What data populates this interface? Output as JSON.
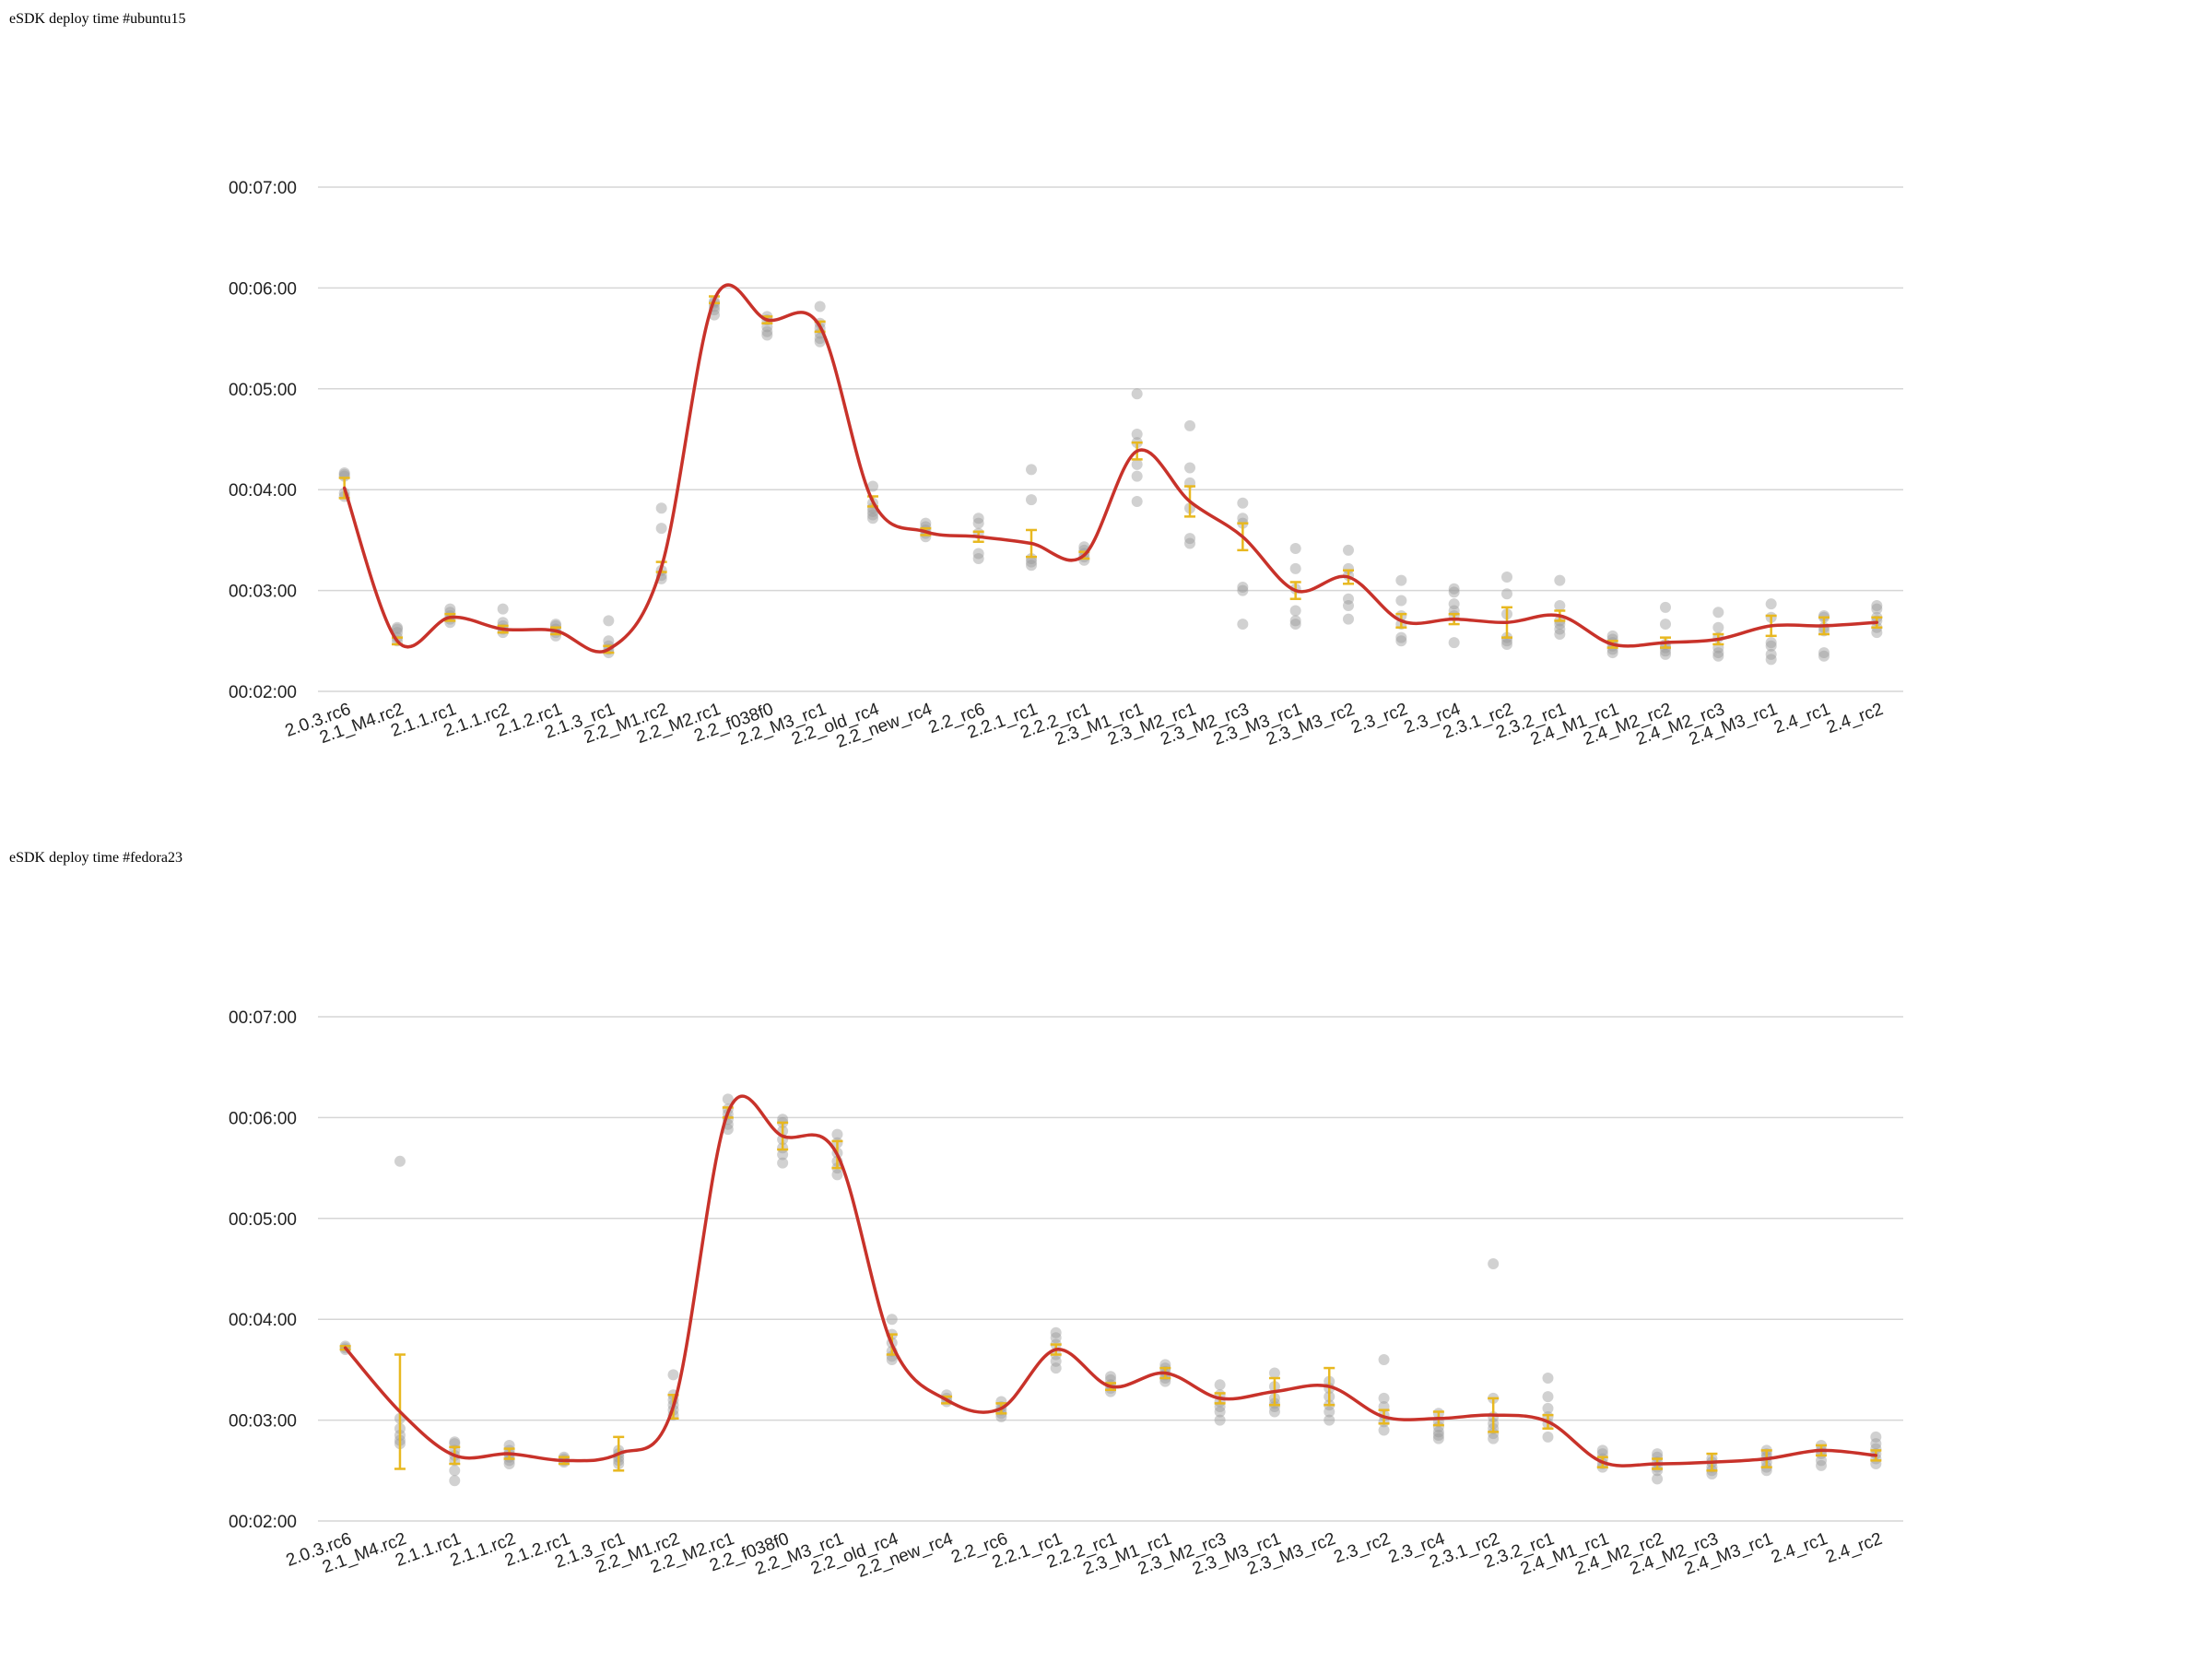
{
  "chart_data": [
    {
      "type": "line",
      "title": "eSDK deploy time #ubuntu15",
      "xlabel": "",
      "ylabel": "",
      "y_unit": "seconds",
      "ylim": [
        120,
        420
      ],
      "yticks": [
        "00:02:00",
        "00:03:00",
        "00:04:00",
        "00:05:00",
        "00:06:00",
        "00:07:00"
      ],
      "grid": true,
      "legend": "none",
      "colors": {
        "line": "#c8322a",
        "points": "#9a9a9a",
        "errorbars": "#e8b820",
        "grid": "#d6d6d6"
      },
      "categories": [
        "2.0.3.rc6",
        "2.1_M4.rc2",
        "2.1.1.rc1",
        "2.1.1.rc2",
        "2.1.2.rc1",
        "2.1.3_rc1",
        "2.2_M1.rc2",
        "2.2_M2.rc1",
        "2.2_f038f0",
        "2.2_M3_rc1",
        "2.2_old_rc4",
        "2.2_new_rc4",
        "2.2_rc6",
        "2.2.1_rc1",
        "2.2.2_rc1",
        "2.3_M1_rc1",
        "2.3_M2_rc1",
        "2.3_M2_rc3",
        "2.3_M3_rc1",
        "2.3_M3_rc2",
        "2.3_rc2",
        "2.3_rc4",
        "2.3.1_rc2",
        "2.3.2_rc1",
        "2.4_M1_rc1",
        "2.4_M2_rc2",
        "2.4_M2_rc3",
        "2.4_M3_rc1",
        "2.4_rc1",
        "2.4_rc2"
      ],
      "series": [
        {
          "values": [
            241,
            150,
            164,
            157,
            156,
            145,
            194,
            353,
            341,
            337,
            233,
            215,
            212,
            208,
            201,
            263,
            233,
            212,
            180,
            188,
            162,
            163,
            161,
            165,
            148,
            149,
            151,
            159,
            159,
            161
          ]
        }
      ],
      "errors": [
        6,
        2,
        2,
        2,
        2,
        2,
        3,
        2,
        2,
        3,
        3,
        2,
        3,
        8,
        2,
        5,
        9,
        8,
        5,
        4,
        4,
        3,
        9,
        3,
        2,
        3,
        3,
        6,
        5,
        3
      ],
      "points": [
        [
          236,
          238,
          248,
          249,
          250
        ],
        [
          150,
          152,
          155,
          157,
          158
        ],
        [
          161,
          163,
          165,
          167,
          169
        ],
        [
          155,
          157,
          159,
          161,
          169
        ],
        [
          153,
          155,
          157,
          159,
          160
        ],
        [
          143,
          145,
          147,
          150,
          162
        ],
        [
          187,
          189,
          192,
          217,
          229
        ],
        [
          344,
          347,
          349,
          351,
          352
        ],
        [
          332,
          334,
          337,
          341,
          343
        ],
        [
          328,
          330,
          333,
          336,
          339,
          349
        ],
        [
          223,
          225,
          227,
          229,
          232,
          242
        ],
        [
          212,
          214,
          216,
          218,
          220
        ],
        [
          199,
          202,
          214,
          220,
          223
        ],
        [
          195,
          197,
          199,
          234,
          252
        ],
        [
          198,
          200,
          202,
          204,
          206
        ],
        [
          233,
          248,
          255,
          268,
          273,
          297
        ],
        [
          208,
          211,
          229,
          244,
          253,
          278
        ],
        [
          160,
          180,
          182,
          220,
          223,
          232
        ],
        [
          160,
          162,
          168,
          181,
          193,
          205
        ],
        [
          163,
          171,
          175,
          189,
          193,
          204
        ],
        [
          150,
          152,
          160,
          165,
          174,
          186
        ],
        [
          149,
          165,
          168,
          172,
          179,
          181
        ],
        [
          148,
          150,
          152,
          166,
          178,
          188
        ],
        [
          154,
          157,
          160,
          162,
          171,
          186
        ],
        [
          143,
          145,
          147,
          149,
          151,
          153
        ],
        [
          142,
          144,
          146,
          148,
          160,
          170
        ],
        [
          141,
          143,
          146,
          152,
          158,
          167
        ],
        [
          139,
          142,
          147,
          149,
          164,
          172
        ],
        [
          141,
          143,
          156,
          158,
          164,
          165
        ],
        [
          155,
          158,
          162,
          164,
          169,
          171
        ]
      ]
    },
    {
      "type": "line",
      "title": "eSDK deploy time #fedora23",
      "xlabel": "",
      "ylabel": "",
      "y_unit": "seconds",
      "ylim": [
        120,
        420
      ],
      "yticks": [
        "00:02:00",
        "00:03:00",
        "00:04:00",
        "00:05:00",
        "00:06:00",
        "00:07:00"
      ],
      "grid": true,
      "legend": "none",
      "colors": {
        "line": "#c8322a",
        "points": "#9a9a9a",
        "errorbars": "#e8b820",
        "grid": "#d6d6d6"
      },
      "categories": [
        "2.0.3.rc6",
        "2.1_M4.rc2",
        "2.1.1.rc1",
        "2.1.1.rc2",
        "2.1.2.rc1",
        "2.1.3_rc1",
        "2.2_M1.rc2",
        "2.2_M2.rc1",
        "2.2_f038f0",
        "2.2_M3_rc1",
        "2.2_old_rc4",
        "2.2_new_rc4",
        "2.2_rc6",
        "2.2.1_rc1",
        "2.2.2_rc1",
        "2.3_M1_rc1",
        "2.3_M2_rc3",
        "2.3_M3_rc1",
        "2.3_M3_rc2",
        "2.3_rc2",
        "2.3_rc4",
        "2.3.1_rc2",
        "2.3.2_rc1",
        "2.4_M1_rc1",
        "2.4_M2_rc2",
        "2.4_M2_rc3",
        "2.4_M3_rc1",
        "2.4_rc1",
        "2.4_rc2"
      ],
      "series": [
        {
          "values": [
            223,
            185,
            159,
            160,
            156,
            160,
            188,
            363,
            349,
            338,
            225,
            192,
            187,
            222,
            200,
            208,
            193,
            197,
            200,
            182,
            181,
            183,
            179,
            155,
            154,
            155,
            157,
            162,
            159
          ]
        }
      ],
      "errors": [
        1,
        34,
        5,
        3,
        2,
        10,
        7,
        3,
        8,
        8,
        6,
        2,
        3,
        3,
        2,
        3,
        3,
        8,
        11,
        4,
        4,
        10,
        4,
        3,
        3,
        5,
        5,
        3,
        3
      ],
      "points": [
        [
          222,
          223,
          224
        ],
        [
          166,
          168,
          171,
          175,
          181,
          334
        ],
        [
          144,
          150,
          156,
          159,
          162,
          166,
          167
        ],
        [
          154,
          156,
          158,
          160,
          162,
          165
        ],
        [
          155,
          156,
          157,
          158
        ],
        [
          154,
          156,
          158,
          160,
          162
        ],
        [
          183,
          186,
          189,
          192,
          195,
          207
        ],
        [
          353,
          356,
          359,
          362,
          365,
          371
        ],
        [
          333,
          338,
          342,
          347,
          352,
          357,
          359
        ],
        [
          326,
          330,
          334,
          339,
          345,
          350
        ],
        [
          216,
          218,
          221,
          226,
          231,
          240
        ],
        [
          191,
          193,
          195
        ],
        [
          182,
          184,
          186,
          188,
          191
        ],
        [
          211,
          215,
          219,
          225,
          229,
          232
        ],
        [
          197,
          199,
          201,
          204,
          206
        ],
        [
          203,
          205,
          207,
          209,
          211,
          213
        ],
        [
          180,
          185,
          188,
          191,
          195,
          201
        ],
        [
          185,
          188,
          190,
          193,
          200,
          208
        ],
        [
          180,
          185,
          189,
          194,
          199,
          203
        ],
        [
          174,
          179,
          183,
          188,
          193,
          216
        ],
        [
          169,
          171,
          173,
          176,
          179,
          184
        ],
        [
          169,
          172,
          175,
          178,
          182,
          193,
          273
        ],
        [
          170,
          178,
          182,
          187,
          194,
          205
        ],
        [
          152,
          154,
          157,
          160,
          162
        ],
        [
          145,
          150,
          152,
          155,
          158,
          160
        ],
        [
          148,
          150,
          152,
          155,
          157
        ],
        [
          150,
          152,
          155,
          158,
          160,
          162
        ],
        [
          153,
          156,
          160,
          162,
          165
        ],
        [
          154,
          157,
          160,
          163,
          166,
          170
        ]
      ]
    }
  ]
}
